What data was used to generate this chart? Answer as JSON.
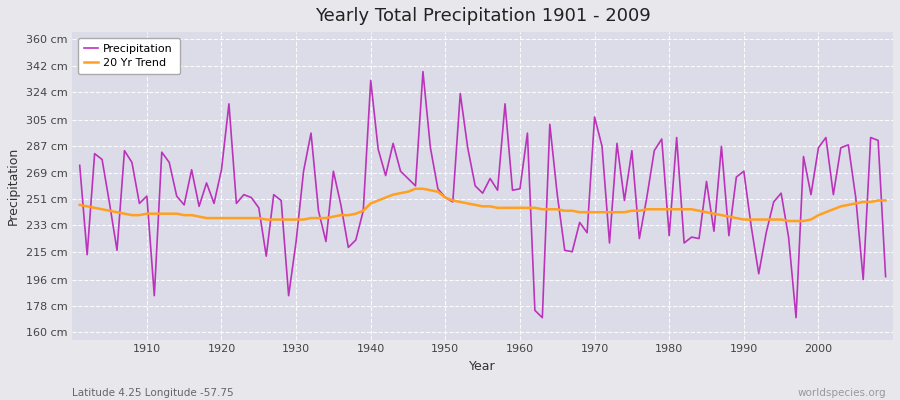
{
  "title": "Yearly Total Precipitation 1901 - 2009",
  "xlabel": "Year",
  "ylabel": "Precipitation",
  "subtitle": "Latitude 4.25 Longitude -57.75",
  "watermark": "worldspecies.org",
  "y_ticks": [
    160,
    178,
    196,
    215,
    233,
    251,
    269,
    287,
    305,
    324,
    342,
    360
  ],
  "y_tick_labels": [
    "160 cm",
    "178 cm",
    "196 cm",
    "215 cm",
    "233 cm",
    "251 cm",
    "269 cm",
    "287 cm",
    "305 cm",
    "324 cm",
    "342 cm",
    "360 cm"
  ],
  "x_tick_positions": [
    1910,
    1920,
    1930,
    1940,
    1950,
    1960,
    1970,
    1980,
    1990,
    2000
  ],
  "ylim": [
    155,
    365
  ],
  "xlim": [
    1900,
    2010
  ],
  "precip_color": "#BB33BB",
  "trend_color": "#FFA020",
  "background_color": "#E8E8EC",
  "plot_bg_color": "#DCDCE8",
  "grid_color": "#F5F5F5",
  "legend_bg": "#FFFFFF",
  "years": [
    1901,
    1902,
    1903,
    1904,
    1905,
    1906,
    1907,
    1908,
    1909,
    1910,
    1911,
    1912,
    1913,
    1914,
    1915,
    1916,
    1917,
    1918,
    1919,
    1920,
    1921,
    1922,
    1923,
    1924,
    1925,
    1926,
    1927,
    1928,
    1929,
    1930,
    1931,
    1932,
    1933,
    1934,
    1935,
    1936,
    1937,
    1938,
    1939,
    1940,
    1941,
    1942,
    1943,
    1944,
    1945,
    1946,
    1947,
    1948,
    1949,
    1950,
    1951,
    1952,
    1953,
    1954,
    1955,
    1956,
    1957,
    1958,
    1959,
    1960,
    1961,
    1962,
    1963,
    1964,
    1965,
    1966,
    1967,
    1968,
    1969,
    1970,
    1971,
    1972,
    1973,
    1974,
    1975,
    1976,
    1977,
    1978,
    1979,
    1980,
    1981,
    1982,
    1983,
    1984,
    1985,
    1986,
    1987,
    1988,
    1989,
    1990,
    1991,
    1992,
    1993,
    1994,
    1995,
    1996,
    1997,
    1998,
    1999,
    2000,
    2001,
    2002,
    2003,
    2004,
    2005,
    2006,
    2007,
    2008,
    2009
  ],
  "precipitation": [
    274,
    213,
    282,
    278,
    248,
    216,
    284,
    276,
    248,
    253,
    185,
    283,
    276,
    253,
    247,
    271,
    246,
    262,
    248,
    271,
    316,
    248,
    254,
    252,
    245,
    212,
    254,
    250,
    185,
    222,
    270,
    296,
    243,
    222,
    270,
    247,
    218,
    223,
    243,
    332,
    285,
    267,
    289,
    270,
    265,
    260,
    338,
    286,
    258,
    252,
    249,
    323,
    286,
    260,
    255,
    265,
    257,
    316,
    257,
    258,
    296,
    175,
    170,
    302,
    254,
    216,
    215,
    235,
    228,
    307,
    287,
    221,
    289,
    250,
    284,
    224,
    252,
    284,
    292,
    226,
    293,
    221,
    225,
    224,
    263,
    229,
    287,
    226,
    266,
    270,
    232,
    200,
    228,
    249,
    255,
    225,
    170,
    280,
    254,
    286,
    293,
    254,
    286,
    288,
    252,
    196,
    293,
    291,
    198
  ],
  "trend": [
    247,
    246,
    245,
    244,
    243,
    242,
    241,
    240,
    240,
    241,
    241,
    241,
    241,
    241,
    240,
    240,
    239,
    238,
    238,
    238,
    238,
    238,
    238,
    238,
    238,
    237,
    237,
    237,
    237,
    237,
    237,
    238,
    238,
    238,
    239,
    240,
    240,
    241,
    243,
    248,
    250,
    252,
    254,
    255,
    256,
    258,
    258,
    257,
    256,
    252,
    250,
    249,
    248,
    247,
    246,
    246,
    245,
    245,
    245,
    245,
    245,
    245,
    244,
    244,
    244,
    243,
    243,
    242,
    242,
    242,
    242,
    242,
    242,
    242,
    243,
    243,
    244,
    244,
    244,
    244,
    244,
    244,
    244,
    243,
    242,
    241,
    240,
    239,
    238,
    237,
    237,
    237,
    237,
    237,
    237,
    236,
    236,
    236,
    237,
    240,
    242,
    244,
    246,
    247,
    248,
    249,
    249,
    250,
    250
  ]
}
